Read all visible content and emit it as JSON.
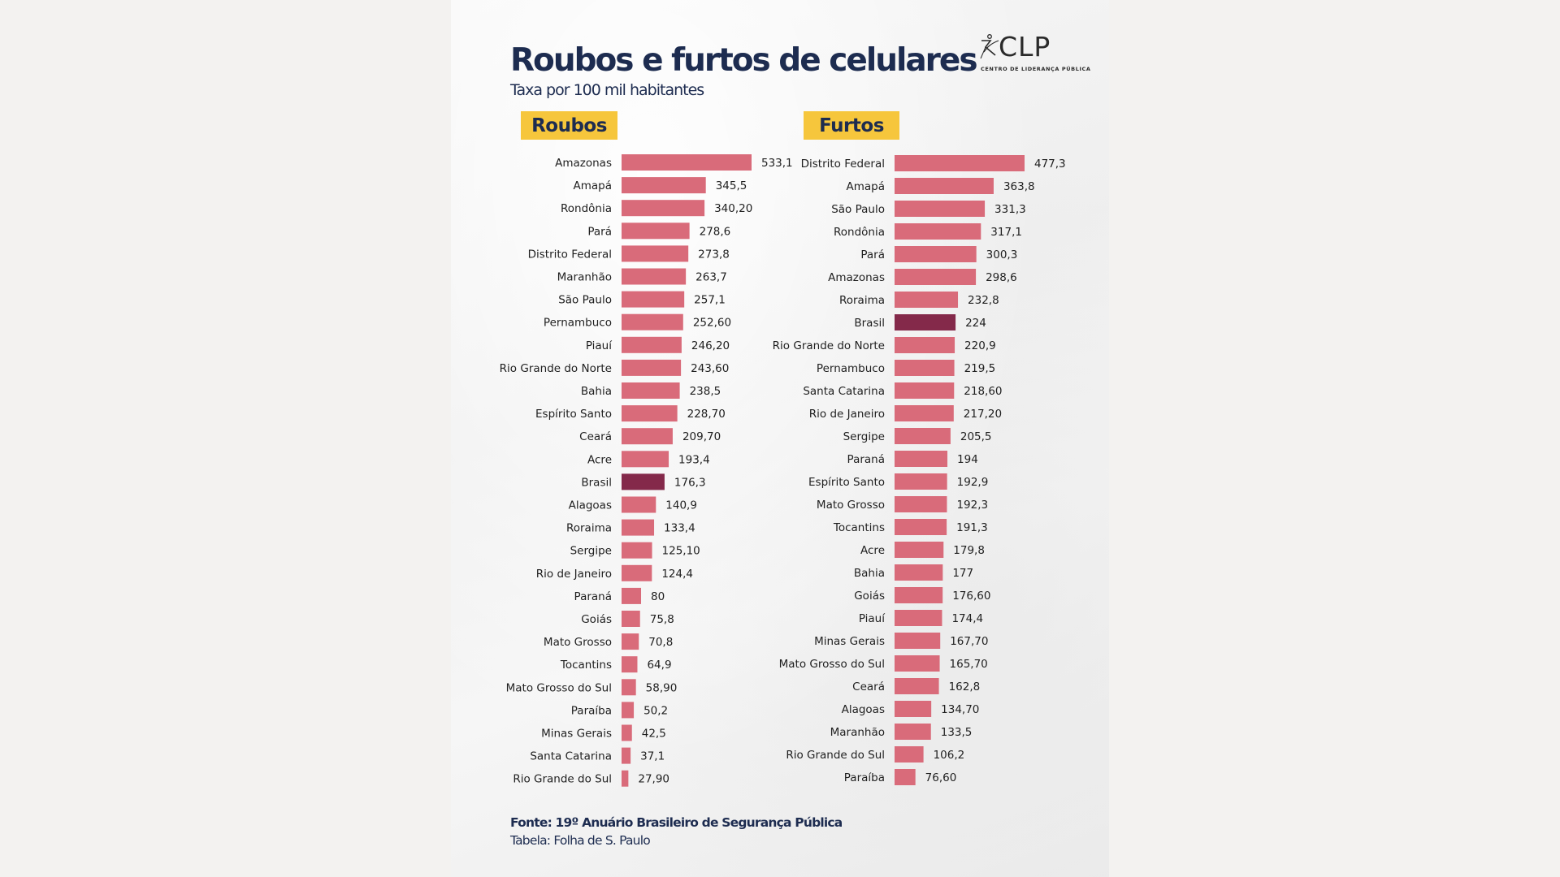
{
  "title": "Roubos e furtos de celulares",
  "subtitle": "Taxa por 100 mil habitantes",
  "logo": {
    "name": "CLP",
    "subtitle": "CENTRO DE LIDERANÇA PÚBLICA"
  },
  "footer": {
    "source": "Fonte: 19º Anuário Brasileiro de Segurança Pública",
    "table": "Tabela: Folha de S. Paulo"
  },
  "colors": {
    "bar": "#d96b7a",
    "highlight": "#84294a",
    "badge": "#f6c63c",
    "navy": "#1d2c50"
  },
  "chart_data": [
    {
      "type": "bar",
      "orientation": "horizontal",
      "title": "Roubos",
      "highlight": "Brasil",
      "categories": [
        "Amazonas",
        "Amapá",
        "Rondônia",
        "Pará",
        "Distrito Federal",
        "Maranhão",
        "São Paulo",
        "Pernambuco",
        "Piauí",
        "Rio Grande do Norte",
        "Bahia",
        "Espírito Santo",
        "Ceará",
        "Acre",
        "Brasil",
        "Alagoas",
        "Roraima",
        "Sergipe",
        "Rio de Janeiro",
        "Paraná",
        "Goiás",
        "Mato Grosso",
        "Tocantins",
        "Mato Grosso do Sul",
        "Paraíba",
        "Minas Gerais",
        "Santa Catarina",
        "Rio Grande do Sul"
      ],
      "values": [
        533.1,
        345.5,
        340.2,
        278.6,
        273.8,
        263.7,
        257.1,
        252.6,
        246.2,
        243.6,
        238.5,
        228.7,
        209.7,
        193.4,
        176.3,
        140.9,
        133.4,
        125.1,
        124.4,
        80,
        75.8,
        70.8,
        64.9,
        58.9,
        50.2,
        42.5,
        37.1,
        27.9
      ],
      "labels": [
        "533,1",
        "345,5",
        "340,20",
        "278,6",
        "273,8",
        "263,7",
        "257,1",
        "252,60",
        "246,20",
        "243,60",
        "238,5",
        "228,70",
        "209,70",
        "193,4",
        "176,3",
        "140,9",
        "133,4",
        "125,10",
        "124,4",
        "80",
        "75,8",
        "70,8",
        "64,9",
        "58,90",
        "50,2",
        "42,5",
        "37,1",
        "27,90"
      ],
      "xlim": [
        0,
        533.1
      ]
    },
    {
      "type": "bar",
      "orientation": "horizontal",
      "title": "Furtos",
      "highlight": "Brasil",
      "categories": [
        "Distrito Federal",
        "Amapá",
        "São Paulo",
        "Rondônia",
        "Pará",
        "Amazonas",
        "Roraima",
        "Brasil",
        "Rio Grande do Norte",
        "Pernambuco",
        "Santa Catarina",
        "Rio de Janeiro",
        "Sergipe",
        "Paraná",
        "Espírito Santo",
        "Mato Grosso",
        "Tocantins",
        "Acre",
        "Bahia",
        "Goiás",
        "Piauí",
        "Minas Gerais",
        "Mato Grosso do Sul",
        "Ceará",
        "Alagoas",
        "Maranhão",
        "Rio Grande do Sul",
        "Paraíba"
      ],
      "values": [
        477.3,
        363.8,
        331.3,
        317.1,
        300.3,
        298.6,
        232.8,
        224,
        220.9,
        219.5,
        218.6,
        217.2,
        205.5,
        194,
        192.9,
        192.3,
        191.3,
        179.8,
        177,
        176.6,
        174.4,
        167.7,
        165.7,
        162.8,
        134.7,
        133.5,
        106.2,
        76.6
      ],
      "labels": [
        "477,3",
        "363,8",
        "331,3",
        "317,1",
        "300,3",
        "298,6",
        "232,8",
        "224",
        "220,9",
        "219,5",
        "218,60",
        "217,20",
        "205,5",
        "194",
        "192,9",
        "192,3",
        "191,3",
        "179,8",
        "177",
        "176,60",
        "174,4",
        "167,70",
        "165,70",
        "162,8",
        "134,70",
        "133,5",
        "106,2",
        "76,60"
      ],
      "xlim": [
        0,
        477.3
      ]
    }
  ]
}
